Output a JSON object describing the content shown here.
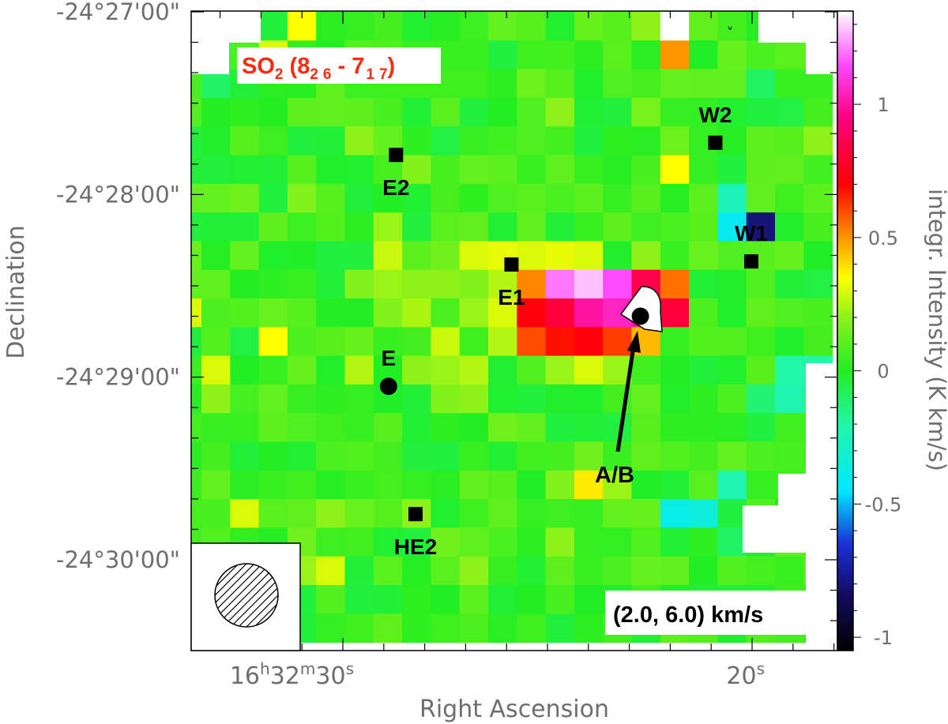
{
  "chart_data": {
    "type": "heatmap",
    "molecule_label": {
      "species": "SO",
      "species_sub": "2",
      "paren_open": " (8",
      "up_1": "2",
      "up_2": "6",
      "dash": " - 7",
      "lo_1": "1",
      "lo_2": "7",
      "paren_close": ")"
    },
    "velocity_range_label": "(2.0, 6.0) km/s",
    "xlabel": "Right Ascension",
    "ylabel": "Declination",
    "colorbar_label": "integr. Intensity (K km/s)",
    "x_ticks": [
      {
        "hours": "16",
        "h": "h",
        "minutes": "32",
        "m": "m",
        "seconds": "30",
        "s": "s",
        "ra_seconds": 30
      },
      {
        "seconds": "20",
        "s": "s",
        "ra_seconds": 20
      }
    ],
    "y_ticks": [
      {
        "label": "-24°27'00\"",
        "dec_arcsec": 0
      },
      {
        "label": "-24°28'00\"",
        "dec_arcsec": 60
      },
      {
        "label": "-24°29'00\"",
        "dec_arcsec": 120
      },
      {
        "label": "-24°30'00\"",
        "dec_arcsec": 180
      }
    ],
    "colorbar_ticks": [
      {
        "label": "1",
        "value": 1.0
      },
      {
        "label": "0.5",
        "value": 0.5
      },
      {
        "label": "0",
        "value": 0.0
      },
      {
        "label": "-0.5",
        "value": -0.5
      },
      {
        "label": "-1",
        "value": -1.0
      }
    ],
    "colorbar_range": [
      -1.05,
      1.35
    ],
    "colormap": [
      {
        "v": -1.05,
        "color": "#000000"
      },
      {
        "v": -0.85,
        "color": "#140a5a"
      },
      {
        "v": -0.65,
        "color": "#1a2fd8"
      },
      {
        "v": -0.45,
        "color": "#00e8ff"
      },
      {
        "v": -0.2,
        "color": "#22f6a8"
      },
      {
        "v": 0.0,
        "color": "#22ee22"
      },
      {
        "v": 0.2,
        "color": "#8cf21a"
      },
      {
        "v": 0.35,
        "color": "#ffff00"
      },
      {
        "v": 0.5,
        "color": "#ff9600"
      },
      {
        "v": 0.7,
        "color": "#ff0000"
      },
      {
        "v": 0.95,
        "color": "#ff0080"
      },
      {
        "v": 1.15,
        "color": "#ff4aff"
      },
      {
        "v": 1.35,
        "color": "#ffffff"
      }
    ],
    "grid": {
      "cols": 22,
      "rows": 22
    },
    "base_intensity": 0.04,
    "pixels": [
      [
        12,
        10,
        0.82
      ],
      [
        13,
        10,
        1.0
      ],
      [
        14,
        10,
        1.05
      ],
      [
        15,
        10,
        1.0
      ],
      [
        16,
        10,
        0.82
      ],
      [
        11,
        9,
        0.52
      ],
      [
        12,
        9,
        1.2
      ],
      [
        13,
        9,
        1.28
      ],
      [
        14,
        9,
        1.15
      ],
      [
        15,
        9,
        0.85
      ],
      [
        16,
        9,
        0.55
      ],
      [
        11,
        10,
        0.72
      ],
      [
        11,
        11,
        0.6
      ],
      [
        12,
        11,
        0.68
      ],
      [
        13,
        11,
        0.72
      ],
      [
        14,
        11,
        0.62
      ],
      [
        15,
        11,
        0.45
      ],
      [
        9,
        8,
        0.3
      ],
      [
        10,
        8,
        0.32
      ],
      [
        11,
        8,
        0.3
      ],
      [
        12,
        8,
        0.32
      ],
      [
        13,
        8,
        0.3
      ],
      [
        15,
        8,
        0.2
      ],
      [
        10,
        9,
        0.25
      ],
      [
        10,
        10,
        0.3
      ],
      [
        10,
        11,
        0.25
      ],
      [
        12,
        12,
        0.22
      ],
      [
        13,
        12,
        0.3
      ],
      [
        14,
        12,
        0.22
      ],
      [
        9,
        9,
        0.18
      ],
      [
        9,
        10,
        0.22
      ],
      [
        8,
        8,
        0.15
      ],
      [
        8,
        9,
        0.2
      ],
      [
        6,
        7,
        0.22
      ],
      [
        6,
        8,
        0.28
      ],
      [
        5,
        9,
        0.18
      ],
      [
        6,
        9,
        0.22
      ],
      [
        7,
        9,
        0.2
      ],
      [
        7,
        10,
        0.24
      ],
      [
        6,
        10,
        0.18
      ],
      [
        16,
        5,
        0.35
      ],
      [
        16,
        4,
        0.14
      ],
      [
        16,
        1,
        0.5
      ],
      [
        16,
        0,
        1.35
      ],
      [
        15,
        0,
        0.2
      ],
      [
        17,
        0,
        0.12
      ],
      [
        18,
        7,
        -0.4
      ],
      [
        19,
        7,
        -0.8
      ],
      [
        18,
        6,
        -0.25
      ],
      [
        18,
        16,
        -0.22
      ],
      [
        17,
        17,
        -0.35
      ],
      [
        16,
        17,
        -0.38
      ],
      [
        20,
        12,
        -0.2
      ],
      [
        21,
        12,
        -0.2
      ],
      [
        20,
        13,
        -0.22
      ],
      [
        21,
        13,
        -0.15
      ],
      [
        19,
        13,
        -0.12
      ],
      [
        0,
        1,
        -0.4
      ],
      [
        0,
        2,
        -0.1
      ],
      [
        0,
        12,
        0.3
      ],
      [
        0,
        13,
        0.2
      ],
      [
        -1,
        10,
        0.3
      ],
      [
        2,
        1,
        0.3
      ],
      [
        3,
        0,
        0.35
      ],
      [
        2,
        11,
        0.35
      ],
      [
        1,
        17,
        0.3
      ],
      [
        4,
        17,
        0.2
      ],
      [
        8,
        11,
        0.28
      ],
      [
        8,
        12,
        0.22
      ],
      [
        9,
        12,
        0.25
      ],
      [
        7,
        12,
        0.2
      ],
      [
        8,
        13,
        0.18
      ],
      [
        9,
        13,
        0.2
      ],
      [
        13,
        16,
        0.38
      ],
      [
        12,
        16,
        0.18
      ],
      [
        14,
        16,
        0.22
      ],
      [
        13,
        15,
        0.15
      ],
      [
        3,
        19,
        0.22
      ],
      [
        4,
        19,
        0.3
      ],
      [
        3,
        18,
        0.15
      ],
      [
        12,
        18,
        0.2
      ],
      [
        9,
        19,
        0.2
      ],
      [
        11,
        2,
        0.14
      ],
      [
        4,
        3,
        0.12
      ],
      [
        5,
        4,
        0.2
      ],
      [
        7,
        5,
        0.18
      ],
      [
        12,
        3,
        0.2
      ],
      [
        15,
        3,
        0.16
      ],
      [
        17,
        2,
        0.12
      ],
      [
        20,
        3,
        -0.05
      ],
      [
        21,
        4,
        0.2
      ],
      [
        19,
        2,
        -0.1
      ],
      [
        2,
        4,
        0.05
      ],
      [
        1,
        6,
        0.15
      ],
      [
        3,
        6,
        0.18
      ],
      [
        5,
        12,
        0.25
      ],
      [
        6,
        14,
        0.1
      ],
      [
        4,
        15,
        0.08
      ],
      [
        10,
        14,
        0.15
      ],
      [
        15,
        14,
        0.1
      ],
      [
        17,
        14,
        0.02
      ],
      [
        19,
        10,
        0.12
      ],
      [
        7,
        17,
        0.2
      ],
      [
        8,
        18,
        0.15
      ],
      [
        16,
        19,
        0.12
      ],
      [
        14,
        19,
        0.08
      ],
      [
        18,
        18,
        -0.1
      ],
      [
        10,
        16,
        0.1
      ]
    ],
    "sources": [
      {
        "label": "E2",
        "ra_arcsec": 1.5,
        "dec_arcsec": 47,
        "marker": "square",
        "label_pos": "below"
      },
      {
        "label": "E1",
        "ra_arcsec": -37,
        "dec_arcsec": 83,
        "marker": "square",
        "label_pos": "below"
      },
      {
        "label": "W2",
        "ra_arcsec": -105,
        "dec_arcsec": 43,
        "marker": "square",
        "label_pos": "above"
      },
      {
        "label": "W1",
        "ra_arcsec": -117,
        "dec_arcsec": 82,
        "marker": "square",
        "label_pos": "above"
      },
      {
        "label": "E",
        "ra_arcsec": 4,
        "dec_arcsec": 123,
        "marker": "circle",
        "label_pos": "above"
      },
      {
        "label": "HE2",
        "ra_arcsec": -5,
        "dec_arcsec": 165,
        "marker": "square",
        "label_pos": "below"
      },
      {
        "label": "",
        "ra_arcsec": -80,
        "dec_arcsec": 100,
        "marker": "circle",
        "label_pos": "none"
      }
    ],
    "arrow_label": "A/B"
  }
}
